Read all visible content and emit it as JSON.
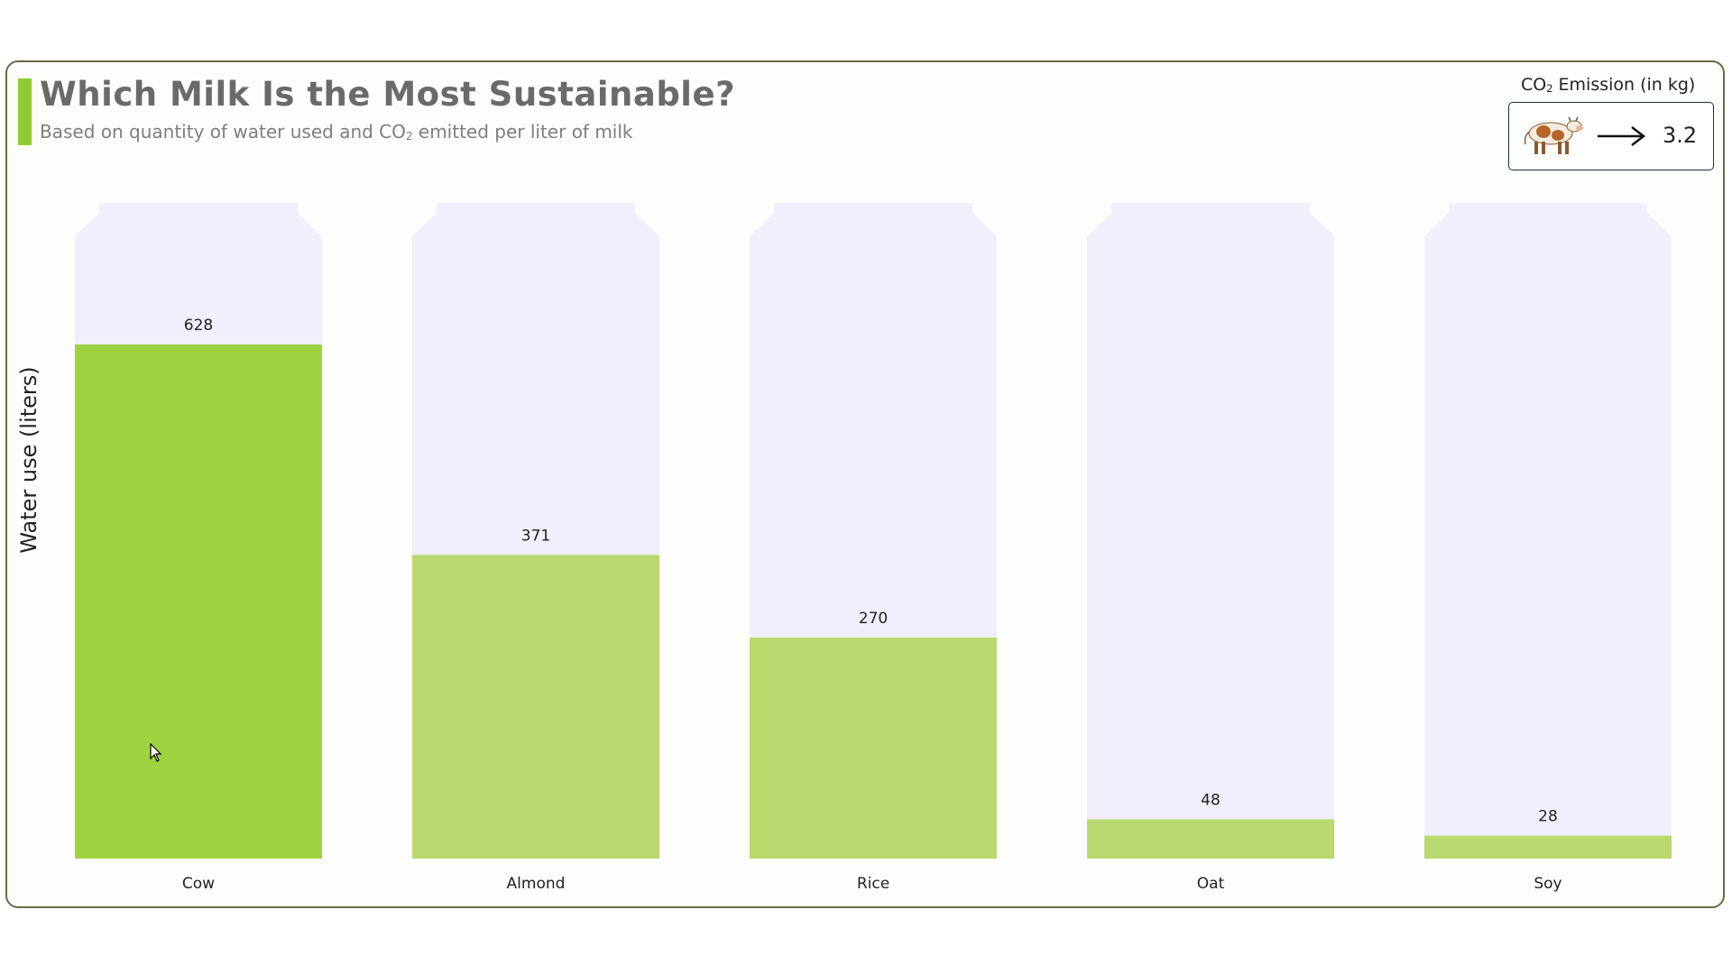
{
  "header": {
    "title": "Which Milk Is the Most Sustainable?",
    "subtitle_pre": "Based on quantity of water used and CO",
    "subtitle_sub": "2",
    "subtitle_post": " emitted per liter of milk"
  },
  "legend": {
    "title_pre": "CO",
    "title_sub": "2",
    "title_post": " Emission (in kg)",
    "icon": "cow-icon",
    "value": "3.2"
  },
  "colors": {
    "highlight_fill": "#9fd23f",
    "bar_fill": "#b9d96e",
    "carton_fill": "#f0effc",
    "accent": "#8fcc33"
  },
  "chart_data": {
    "type": "bar",
    "categories": [
      "Cow",
      "Almond",
      "Rice",
      "Oat",
      "Soy"
    ],
    "values": [
      628,
      371,
      270,
      48,
      28
    ],
    "value_labels": [
      "628",
      "371",
      "270",
      "48",
      "28"
    ],
    "title": "Which Milk Is the Most Sustainable?",
    "ylabel": "Water use (liters)",
    "highlighted": "Cow",
    "co2_emission_kg": {
      "Cow": 3.2
    },
    "grid": false
  }
}
